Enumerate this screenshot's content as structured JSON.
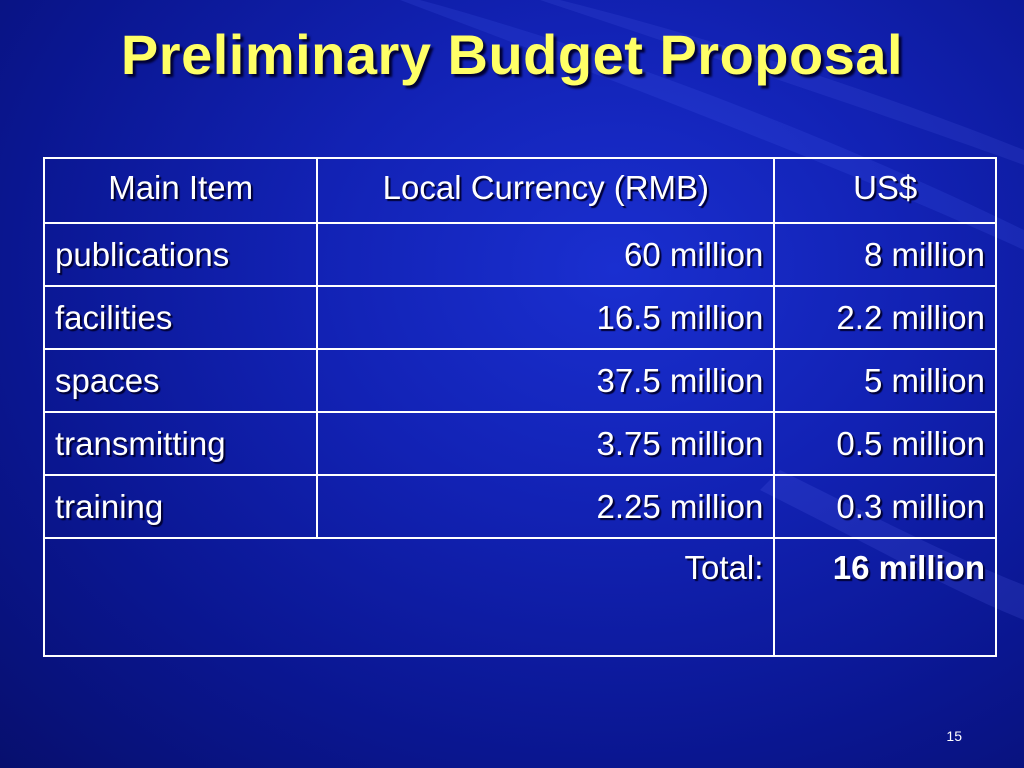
{
  "slide": {
    "title": "Preliminary Budget Proposal",
    "page_number": "15"
  },
  "table": {
    "headers": [
      "Main Item",
      "Local Currency (RMB)",
      "US$"
    ],
    "rows": [
      {
        "item": "publications",
        "rmb": "60 million",
        "usd": "8 million"
      },
      {
        "item": "facilities",
        "rmb": "16.5 million",
        "usd": "2.2 million"
      },
      {
        "item": "spaces",
        "rmb": "37.5 million",
        "usd": "5 million"
      },
      {
        "item": "transmitting",
        "rmb": "3.75 million",
        "usd": "0.5 million"
      },
      {
        "item": "training",
        "rmb": "2.25 million",
        "usd": "0.3 million"
      }
    ],
    "total_label": "Total:",
    "total_value": "16 million"
  },
  "colors": {
    "title": "#ffff66",
    "text": "#ffffff",
    "background": "#1222b4"
  }
}
